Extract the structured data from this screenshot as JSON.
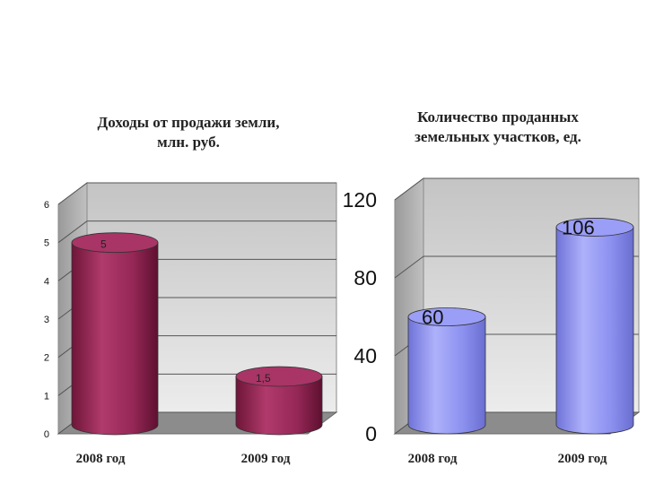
{
  "chart_data": [
    {
      "type": "bar",
      "title_lines": [
        "Доходы от продажи земли,",
        "млн. руб."
      ],
      "categories": [
        "2008 год",
        "2009 год"
      ],
      "values": [
        5,
        1.5
      ],
      "data_labels": [
        "5",
        "1,5"
      ],
      "yticks": [
        "0",
        "1",
        "2",
        "3",
        "4",
        "5",
        "6"
      ],
      "ylim": [
        0,
        6
      ],
      "grid": true,
      "bar_shape": "cylinder",
      "color": "#9c2a5c"
    },
    {
      "type": "bar",
      "title_lines": [
        "Количество проданных",
        "земельных участков, ед."
      ],
      "categories": [
        "2008 год",
        "2009 год"
      ],
      "values": [
        60,
        106
      ],
      "data_labels": [
        "60",
        "106"
      ],
      "yticks": [
        "0",
        "40",
        "80",
        "120"
      ],
      "ylim": [
        0,
        120
      ],
      "grid": true,
      "bar_shape": "cylinder",
      "color": "#8a8ef0"
    }
  ]
}
